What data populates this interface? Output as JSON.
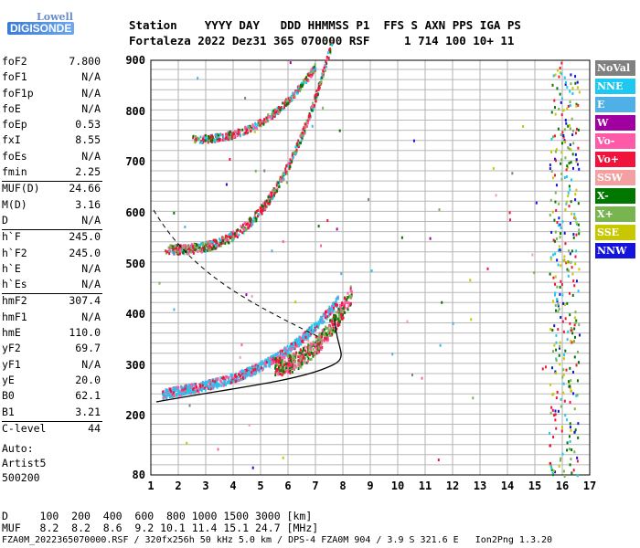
{
  "logo": {
    "top": "Lowell",
    "bottom": "DIGISONDE"
  },
  "header": {
    "line1": "Station    YYYY DAY   DDD HHMMSS P1  FFS S AXN PPS IGA PS",
    "line2": "Fortaleza 2022 Dez31 365 070000 RSF     1 714 100 10+ 11"
  },
  "params": [
    {
      "label": "foF2",
      "value": "7.800"
    },
    {
      "label": "foF1",
      "value": "N/A"
    },
    {
      "label": "foF1p",
      "value": "N/A"
    },
    {
      "label": "foE",
      "value": "N/A"
    },
    {
      "label": "foEp",
      "value": "0.53"
    },
    {
      "label": "fxI",
      "value": "8.55"
    },
    {
      "label": "foEs",
      "value": "N/A"
    },
    {
      "label": "fmin",
      "value": "2.25"
    },
    {
      "label": "MUF(D)",
      "value": "24.66",
      "sep": true
    },
    {
      "label": "M(D)",
      "value": "3.16"
    },
    {
      "label": "D",
      "value": "N/A"
    },
    {
      "label": "h`F",
      "value": "245.0",
      "sep": true
    },
    {
      "label": "h`F2",
      "value": "245.0"
    },
    {
      "label": "h`E",
      "value": "N/A"
    },
    {
      "label": "h`Es",
      "value": "N/A"
    },
    {
      "label": "hmF2",
      "value": "307.4",
      "sep": true
    },
    {
      "label": "hmF1",
      "value": "N/A"
    },
    {
      "label": "hmE",
      "value": "110.0"
    },
    {
      "label": "yF2",
      "value": "69.7"
    },
    {
      "label": "yF1",
      "value": "N/A"
    },
    {
      "label": "yE",
      "value": "20.0"
    },
    {
      "label": "B0",
      "value": "62.1"
    },
    {
      "label": "B1",
      "value": "3.21"
    },
    {
      "label": "C-level",
      "value": "44",
      "sep": true
    }
  ],
  "auto": {
    "line1": "Auto:",
    "line2": "Artist5",
    "line3": "500200"
  },
  "legend": [
    {
      "label": "NoVal",
      "color": "#808080"
    },
    {
      "label": "NNE",
      "color": "#1ec8f0"
    },
    {
      "label": "E",
      "color": "#4fb0e8"
    },
    {
      "label": "W",
      "color": "#a000a0"
    },
    {
      "label": "Vo-",
      "color": "#ff5aa8"
    },
    {
      "label": "Vo+",
      "color": "#f0143c"
    },
    {
      "label": "SSW",
      "color": "#f5a0a0"
    },
    {
      "label": "X-",
      "color": "#007800"
    },
    {
      "label": "X+",
      "color": "#78b450"
    },
    {
      "label": "SSE",
      "color": "#c8c800"
    },
    {
      "label": "NNW",
      "color": "#1414dc"
    }
  ],
  "axes": {
    "x_ticks": [
      "1",
      "2",
      "3",
      "4",
      "5",
      "6",
      "7",
      "8",
      "9",
      "10",
      "11",
      "12",
      "13",
      "14",
      "15",
      "16",
      "17"
    ],
    "y_ticks": [
      "80",
      "200",
      "300",
      "400",
      "500",
      "600",
      "700",
      "800",
      "900"
    ]
  },
  "footer": {
    "line1": "D     100  200  400  600  800 1000 1500 3000 [km]",
    "line2": "MUF   8.2  8.2  8.6  9.2 10.1 11.4 15.1 24.7 [MHz]",
    "line3": "FZA0M_2022365070000.RSF / 320fx256h 50 kHz 5.0 km / DPS-4 FZA0M 904 / 3.9 S 321.6 E   Ion2Png 1.3.20"
  }
}
